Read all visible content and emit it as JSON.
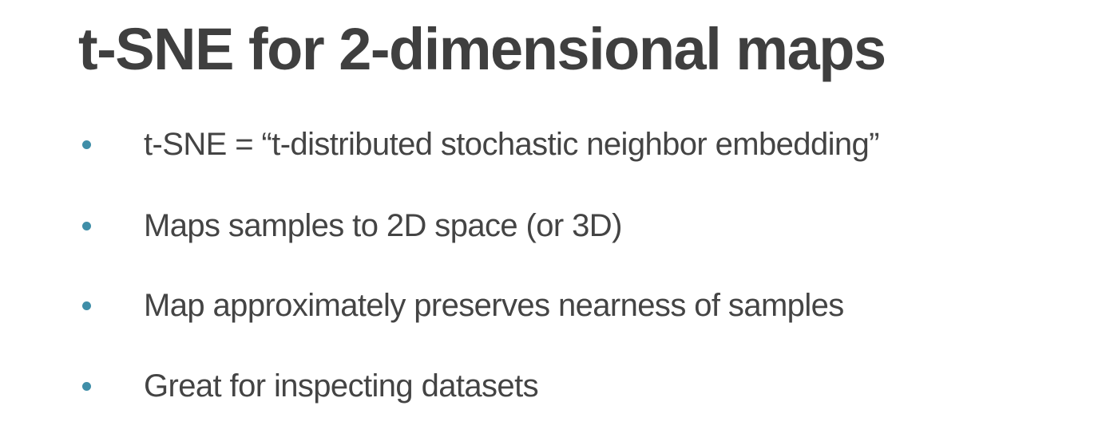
{
  "slide": {
    "title": "t-SNE for 2-dimensional maps",
    "bullets": [
      "t-SNE = “t-distributed stochastic neighbor embedding”",
      "Maps samples to 2D space (or 3D)",
      "Map approximately preserves nearness of samples",
      "Great for inspecting datasets"
    ],
    "colors": {
      "title": "#3f3f3f",
      "text": "#444444",
      "bullet": "#3f8ea8",
      "background": "#ffffff"
    }
  }
}
